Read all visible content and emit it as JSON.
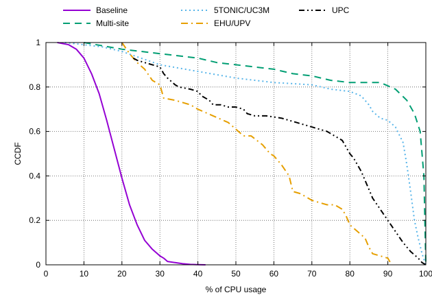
{
  "chart_data": {
    "type": "line",
    "xlabel": "% of CPU usage",
    "ylabel": "CCDF",
    "xlim": [
      0,
      100
    ],
    "ylim": [
      0,
      1
    ],
    "x_ticks": [
      "0",
      "10",
      "20",
      "30",
      "40",
      "50",
      "60",
      "70",
      "80",
      "90",
      "100"
    ],
    "y_ticks": [
      "0",
      "0.2",
      "0.4",
      "0.6",
      "0.8",
      "1"
    ],
    "grid": true,
    "legend_position": "top",
    "series": [
      {
        "name": "Baseline",
        "color": "#9400d3",
        "dash": "solid",
        "x": [
          3,
          6,
          8,
          10,
          12,
          14,
          16,
          18,
          20,
          22,
          24,
          26,
          28,
          30,
          31,
          32,
          34,
          36,
          38,
          40,
          42
        ],
        "y": [
          1.0,
          0.99,
          0.97,
          0.93,
          0.86,
          0.77,
          0.65,
          0.52,
          0.39,
          0.27,
          0.18,
          0.11,
          0.07,
          0.04,
          0.03,
          0.015,
          0.01,
          0.005,
          0.002,
          0.001,
          0.0
        ]
      },
      {
        "name": "Multi-site",
        "color": "#009e73",
        "dash": "dashed",
        "x": [
          10,
          20,
          30,
          40,
          45,
          55,
          60,
          65,
          70,
          75,
          80,
          85,
          88,
          92,
          95,
          97,
          98.5,
          99.5,
          100
        ],
        "y": [
          1.0,
          0.97,
          0.95,
          0.93,
          0.91,
          0.89,
          0.88,
          0.86,
          0.85,
          0.83,
          0.82,
          0.82,
          0.82,
          0.79,
          0.74,
          0.68,
          0.6,
          0.4,
          0.0
        ]
      },
      {
        "name": "5TONIC/UC3M",
        "color": "#56b4e9",
        "dash": "dotted",
        "x": [
          5,
          10,
          15,
          20,
          30,
          40,
          50,
          60,
          70,
          75,
          80,
          83,
          85,
          86,
          88,
          90,
          92,
          94,
          95,
          96,
          97,
          98,
          99,
          100
        ],
        "y": [
          1.0,
          0.99,
          0.98,
          0.96,
          0.9,
          0.87,
          0.84,
          0.82,
          0.81,
          0.79,
          0.78,
          0.76,
          0.72,
          0.69,
          0.66,
          0.65,
          0.62,
          0.55,
          0.45,
          0.33,
          0.2,
          0.12,
          0.05,
          0.0
        ]
      },
      {
        "name": "EHU/UPV",
        "color": "#e69f00",
        "dash": "dashdot",
        "x": [
          20,
          22,
          24,
          26,
          28,
          30,
          31,
          34,
          38,
          40,
          44,
          48,
          52,
          54,
          57,
          59,
          60,
          62,
          64,
          65,
          67,
          69,
          70,
          72,
          74,
          76,
          78,
          79,
          80,
          82,
          84,
          85,
          86,
          88,
          90,
          91
        ],
        "y": [
          1.0,
          0.95,
          0.91,
          0.88,
          0.83,
          0.81,
          0.75,
          0.74,
          0.72,
          0.7,
          0.67,
          0.64,
          0.58,
          0.58,
          0.54,
          0.5,
          0.49,
          0.45,
          0.4,
          0.33,
          0.32,
          0.3,
          0.29,
          0.28,
          0.27,
          0.27,
          0.25,
          0.22,
          0.18,
          0.15,
          0.12,
          0.08,
          0.05,
          0.04,
          0.03,
          0.0
        ]
      },
      {
        "name": "UPC",
        "color": "#000000",
        "dash": "dashdotdot",
        "x": [
          23,
          24,
          26,
          28,
          30,
          31,
          32,
          34,
          35,
          38,
          40,
          41,
          43,
          44,
          46,
          48,
          50,
          52,
          53,
          55,
          58,
          62,
          66,
          70,
          74,
          76,
          78,
          79,
          80,
          81,
          82,
          83,
          84,
          85,
          86,
          88,
          90,
          92,
          94,
          96,
          98,
          99,
          100
        ],
        "y": [
          0.93,
          0.92,
          0.91,
          0.9,
          0.89,
          0.86,
          0.84,
          0.81,
          0.8,
          0.79,
          0.78,
          0.76,
          0.74,
          0.72,
          0.72,
          0.71,
          0.71,
          0.7,
          0.68,
          0.67,
          0.67,
          0.66,
          0.64,
          0.62,
          0.6,
          0.58,
          0.56,
          0.53,
          0.5,
          0.48,
          0.45,
          0.42,
          0.38,
          0.34,
          0.3,
          0.25,
          0.2,
          0.15,
          0.1,
          0.06,
          0.03,
          0.01,
          0.0
        ]
      }
    ]
  }
}
